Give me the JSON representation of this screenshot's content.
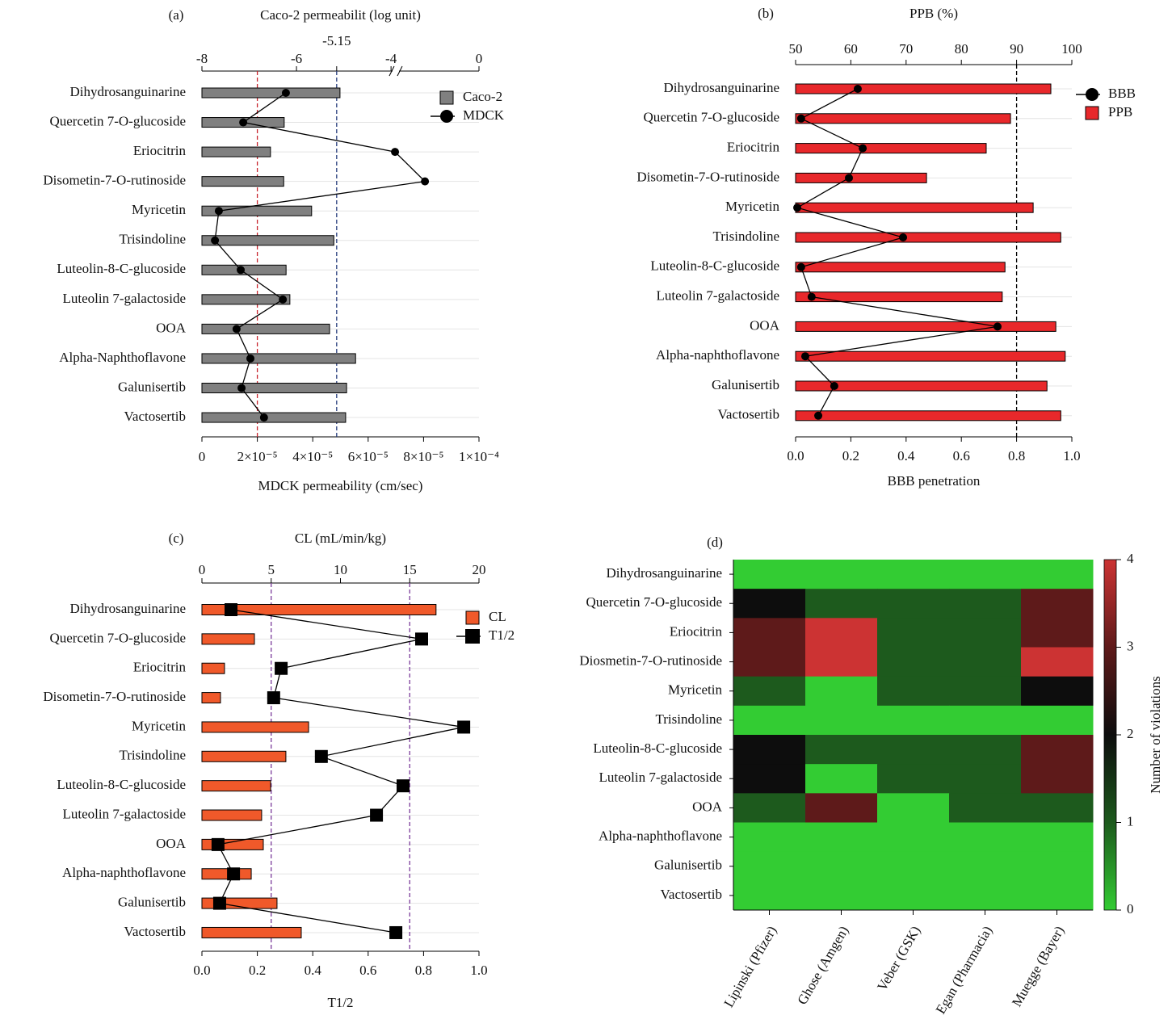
{
  "chart_data": [
    {
      "type": "combo",
      "panel": "(a)",
      "x2_label": "Caco-2 permeabilit (log unit)",
      "x_label": "MDCK permeability (cm/sec)",
      "categories": [
        "Dihydrosanguinarine",
        "Quercetin 7-O-glucoside",
        "Eriocitrin",
        "Disometin-7-O-rutinoside",
        "Myricetin",
        "Trisindoline",
        "Luteolin-8-C-glucoside",
        "Luteolin 7-galactoside",
        "OOA",
        "Alpha-Naphthoflavone",
        "Galunisertib",
        "Vactosertib"
      ],
      "x2lim": [
        -8,
        0
      ],
      "x2_break": [
        -3.9,
        -1.76
      ],
      "x2ticks": [
        -8,
        -6,
        -5.15,
        -4,
        0
      ],
      "xlim": [
        0,
        0.0001
      ],
      "xticks": [
        0,
        {
          "value": 2e-05,
          "label": "2×10⁻⁵"
        },
        {
          "value": 4e-05,
          "label": "4×10⁻⁵"
        },
        {
          "value": 6e-05,
          "label": "6×10⁻⁵"
        },
        {
          "value": 8e-05,
          "label": "8×10⁻⁵"
        },
        {
          "value": 0.0001,
          "label": "1×10⁻⁴"
        }
      ],
      "ref_lines": [
        {
          "axis": "x",
          "value": 2e-05,
          "color": "#c8232c"
        },
        {
          "axis": "x2",
          "value": -5.15,
          "color": "#253a7a"
        }
      ],
      "grid": true,
      "legend": "upper right",
      "series": [
        {
          "name": "Caco-2",
          "kind": "bar",
          "axis": "x2",
          "color": "#808080",
          "values": [
            -5.08,
            -6.26,
            -6.55,
            -6.27,
            -5.68,
            -5.21,
            -6.22,
            -6.14,
            -5.3,
            -4.75,
            -4.94,
            -4.96
          ]
        },
        {
          "name": "MDCK",
          "kind": "line",
          "axis": "x",
          "marker": "circle",
          "color": "#000000",
          "values": [
            3.03e-05,
            1.49e-05,
            6.97e-05,
            8.05e-05,
            6.1e-06,
            4.7e-06,
            1.4e-05,
            2.92e-05,
            1.25e-05,
            1.75e-05,
            1.43e-05,
            2.24e-05
          ]
        }
      ]
    },
    {
      "type": "combo",
      "panel": "(b)",
      "x2_label": "PPB (%)",
      "x_label": "BBB penetration",
      "categories": [
        "Dihydrosanguinarine",
        "Quercetin 7-O-glucoside",
        "Eriocitrin",
        "Disometin-7-O-rutinoside",
        "Myricetin",
        "Trisindoline",
        "Luteolin-8-C-glucoside",
        "Luteolin 7-galactoside",
        "OOA",
        "Alpha-naphthoflavone",
        "Galunisertib",
        "Vactosertib"
      ],
      "x2lim": [
        50,
        100
      ],
      "x2ticks": [
        50,
        60,
        70,
        80,
        90,
        100
      ],
      "xlim": [
        0,
        1
      ],
      "xticks": [
        {
          "value": 0,
          "label": "0.0"
        },
        0.2,
        0.4,
        0.6,
        0.8,
        {
          "value": 1,
          "label": "1.0"
        }
      ],
      "ref_lines": [
        {
          "axis": "x",
          "value": 0.8,
          "color": "#000000"
        }
      ],
      "grid": true,
      "legend": "upper right",
      "series": [
        {
          "name": "BBB",
          "kind": "line",
          "axis": "x",
          "marker": "circle",
          "color": "#000000",
          "values": [
            0.225,
            0.02,
            0.243,
            0.193,
            0.006,
            0.389,
            0.02,
            0.058,
            0.731,
            0.035,
            0.14,
            0.082
          ]
        },
        {
          "name": "PPB",
          "kind": "bar",
          "axis": "x2",
          "color": "#e8282b",
          "values": [
            96.2,
            88.9,
            84.5,
            73.7,
            93.0,
            98.0,
            87.9,
            87.4,
            97.1,
            98.8,
            95.5,
            98.0
          ]
        }
      ]
    },
    {
      "type": "combo",
      "panel": "(c)",
      "x2_label": "CL (mL/min/kg)",
      "x_label": "T1/2",
      "categories": [
        "Dihydrosanguinarine",
        "Quercetin 7-O-glucoside",
        "Eriocitrin",
        "Disometin-7-O-rutinoside",
        "Myricetin",
        "Trisindoline",
        "Luteolin-8-C-glucoside",
        "Luteolin 7-galactoside",
        "OOA",
        "Alpha-naphthoflavone",
        "Galunisertib",
        "Vactosertib"
      ],
      "x2lim": [
        0,
        20
      ],
      "x2ticks": [
        0,
        5,
        10,
        15,
        20
      ],
      "xlim": [
        0,
        1
      ],
      "xticks": [
        {
          "value": 0,
          "label": "0.0"
        },
        0.2,
        0.4,
        0.6,
        0.8,
        {
          "value": 1,
          "label": "1.0"
        }
      ],
      "ref_lines": [
        {
          "axis": "x",
          "value": 0.25,
          "color": "#7a3a9a"
        },
        {
          "axis": "x",
          "value": 0.75,
          "color": "#7a3a9a"
        }
      ],
      "grid": true,
      "legend": "upper right",
      "series": [
        {
          "name": "CL",
          "kind": "bar",
          "axis": "x2",
          "color": "#f0592a",
          "values": [
            16.9,
            3.79,
            1.63,
            1.34,
            7.7,
            6.06,
            4.96,
            4.31,
            4.43,
            3.56,
            5.42,
            7.17
          ]
        },
        {
          "name": "T1/2",
          "kind": "line",
          "axis": "x",
          "marker": "square",
          "color": "#000000",
          "values": [
            0.105,
            0.793,
            0.286,
            0.259,
            0.945,
            0.431,
            0.726,
            0.63,
            0.058,
            0.114,
            0.064,
            0.7
          ]
        }
      ]
    },
    {
      "type": "heatmap",
      "panel": "(d)",
      "rows": [
        "Dihydrosanguinarine",
        "Quercetin 7-O-glucoside",
        "Eriocitrin",
        "Diosmetin-7-O-rutinoside",
        "Myricetin",
        "Trisindoline",
        "Luteolin-8-C-glucoside",
        "Luteolin 7-galactoside",
        "OOA",
        "Alpha-naphthoflavone",
        "Galunisertib",
        "Vactosertib"
      ],
      "columns": [
        "Lipinski (Pfizer)",
        "Ghose (Amgen)",
        "Veber (GSK)",
        "Egan (Pharmacia)",
        "Muegge (Bayer)"
      ],
      "values": [
        [
          0,
          0,
          0,
          0,
          0
        ],
        [
          2,
          1,
          1,
          1,
          3
        ],
        [
          3,
          4,
          1,
          1,
          3
        ],
        [
          3,
          4,
          1,
          1,
          4
        ],
        [
          1,
          0,
          1,
          1,
          2
        ],
        [
          0,
          0,
          0,
          0,
          0
        ],
        [
          2,
          1,
          1,
          1,
          3
        ],
        [
          2,
          0,
          1,
          1,
          3
        ],
        [
          1,
          3,
          0,
          1,
          1
        ],
        [
          0,
          0,
          0,
          0,
          0
        ],
        [
          0,
          0,
          0,
          0,
          0
        ],
        [
          0,
          0,
          0,
          0,
          0
        ]
      ],
      "colors": [
        "#33cc33",
        "#1d5a1d",
        "#0d0d0d",
        "#5e1a1a",
        "#cc3333"
      ],
      "clim": [
        0,
        4
      ],
      "cticks": [
        0,
        1,
        2,
        3,
        4
      ],
      "colorbar_label": "Number of violations"
    }
  ]
}
